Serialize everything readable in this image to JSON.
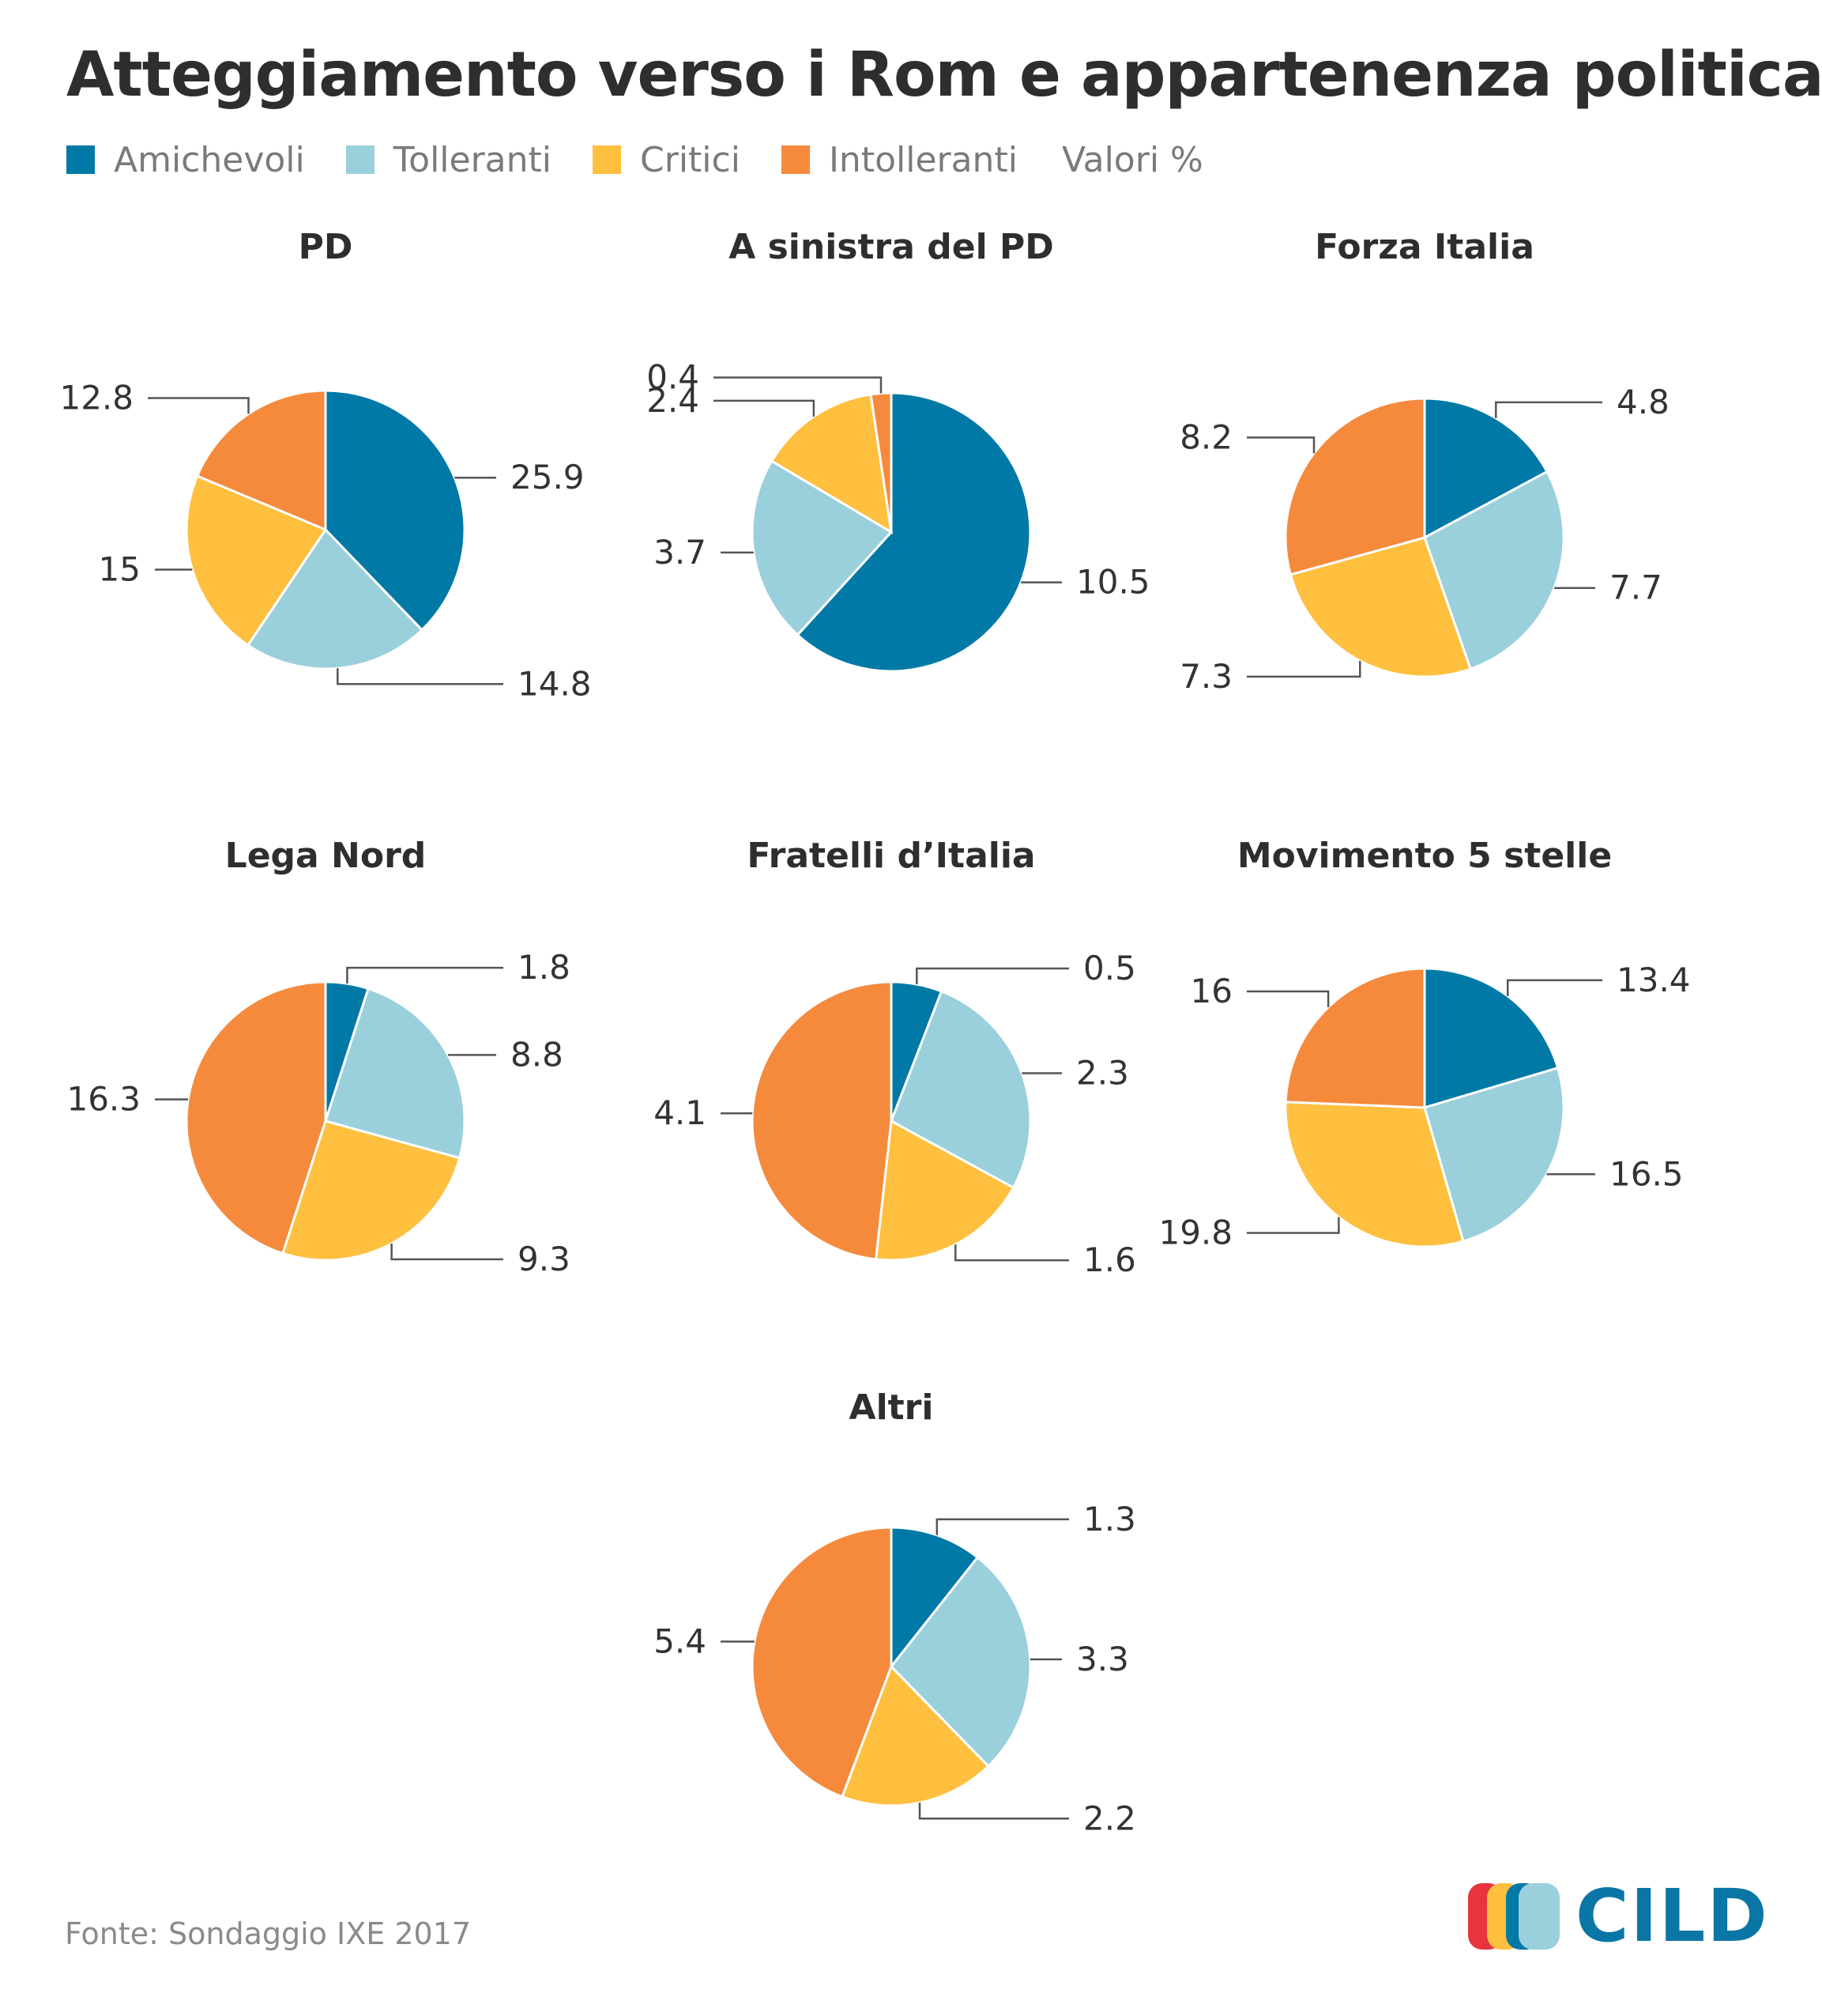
{
  "title": "Atteggiamento verso i Rom e appartenenza politica",
  "legend": {
    "items": [
      {
        "label": "Amichevoli",
        "color": "#0079A6"
      },
      {
        "label": "Tolleranti",
        "color": "#9ACFDC"
      },
      {
        "label": "Critici",
        "color": "#FFBF3F"
      },
      {
        "label": "Intolleranti",
        "color": "#F58A3D"
      }
    ],
    "units": "Valori %"
  },
  "chart_data": [
    {
      "type": "pie",
      "title": "PD",
      "categories": [
        "Amichevoli",
        "Tolleranti",
        "Critici",
        "Intolleranti"
      ],
      "values": [
        25.9,
        14.8,
        15,
        12.8
      ]
    },
    {
      "type": "pie",
      "title": "A sinistra del PD",
      "categories": [
        "Amichevoli",
        "Tolleranti",
        "Critici",
        "Intolleranti"
      ],
      "values": [
        10.5,
        3.7,
        2.4,
        0.4
      ]
    },
    {
      "type": "pie",
      "title": "Forza Italia",
      "categories": [
        "Amichevoli",
        "Tolleranti",
        "Critici",
        "Intolleranti"
      ],
      "values": [
        4.8,
        7.7,
        7.3,
        8.2
      ]
    },
    {
      "type": "pie",
      "title": "Lega Nord",
      "categories": [
        "Amichevoli",
        "Tolleranti",
        "Critici",
        "Intolleranti"
      ],
      "values": [
        1.8,
        8.8,
        9.3,
        16.3
      ]
    },
    {
      "type": "pie",
      "title": "Fratelli d’Italia",
      "categories": [
        "Amichevoli",
        "Tolleranti",
        "Critici",
        "Intolleranti"
      ],
      "values": [
        0.5,
        2.3,
        1.6,
        4.1
      ]
    },
    {
      "type": "pie",
      "title": "Movimento 5 stelle",
      "categories": [
        "Amichevoli",
        "Tolleranti",
        "Critici",
        "Intolleranti"
      ],
      "values": [
        13.4,
        16.5,
        19.8,
        16
      ]
    },
    {
      "type": "pie",
      "title": "Altri",
      "categories": [
        "Amichevoli",
        "Tolleranti",
        "Critici",
        "Intolleranti"
      ],
      "values": [
        1.3,
        3.3,
        2.2,
        5.4
      ]
    }
  ],
  "source": "Fonte: Sondaggio IXE 2017",
  "logo": {
    "text": "CILD",
    "bar_colors": [
      "#E7343F",
      "#FFBF3F",
      "#0079A6",
      "#9ACFDC"
    ]
  }
}
